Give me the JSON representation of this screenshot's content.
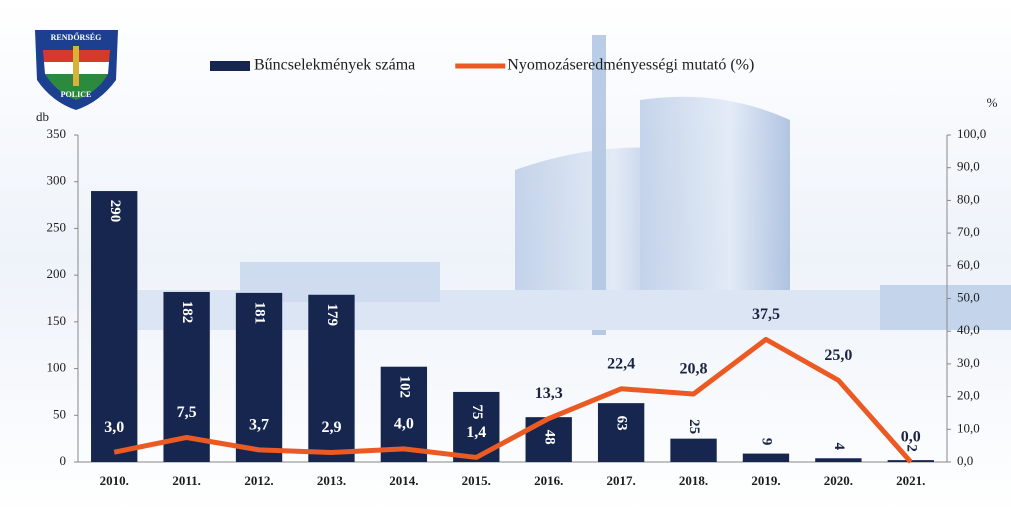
{
  "logo": {
    "top": "RENDŐRSÉG",
    "bottom": "POLICE"
  },
  "chart_data": {
    "type": "bar",
    "categories": [
      "2010.",
      "2011.",
      "2012.",
      "2013.",
      "2014.",
      "2015.",
      "2016.",
      "2017.",
      "2018.",
      "2019.",
      "2020.",
      "2021."
    ],
    "series": [
      {
        "name": "Bűncselekmények száma",
        "type": "bar",
        "color": "#16264f",
        "values": [
          290,
          182,
          181,
          179,
          102,
          75,
          48,
          63,
          25,
          9,
          4,
          2
        ]
      },
      {
        "name": "Nyomozáseredményességi mutató (%)",
        "type": "line",
        "axis": "y2",
        "color": "#ec5a24",
        "values": [
          3.0,
          7.5,
          3.7,
          2.9,
          4.0,
          1.4,
          13.3,
          22.4,
          20.8,
          37.5,
          25.0,
          0.0
        ],
        "value_labels": [
          "3,0",
          "7,5",
          "3,7",
          "2,9",
          "4,0",
          "1,4",
          "13,3",
          "22,4",
          "20,8",
          "37,5",
          "25,0",
          "0,0"
        ]
      }
    ],
    "ylabel": "db",
    "y2label": "%",
    "ylim": [
      0,
      350
    ],
    "yticks": [
      0,
      50,
      100,
      150,
      200,
      250,
      300,
      350
    ],
    "y2lim": [
      0,
      100
    ],
    "y2ticks": [
      {
        "value": 0,
        "label": "0,0"
      },
      {
        "value": 10,
        "label": "10,0"
      },
      {
        "value": 20,
        "label": "20,0"
      },
      {
        "value": 30,
        "label": "30,0"
      },
      {
        "value": 40,
        "label": "40,0"
      },
      {
        "value": 50,
        "label": "50,0"
      },
      {
        "value": 60,
        "label": "60,0"
      },
      {
        "value": 70,
        "label": "70,0"
      },
      {
        "value": 80,
        "label": "80,0"
      },
      {
        "value": 90,
        "label": "90,0"
      },
      {
        "value": 100,
        "label": "100,0"
      }
    ]
  }
}
